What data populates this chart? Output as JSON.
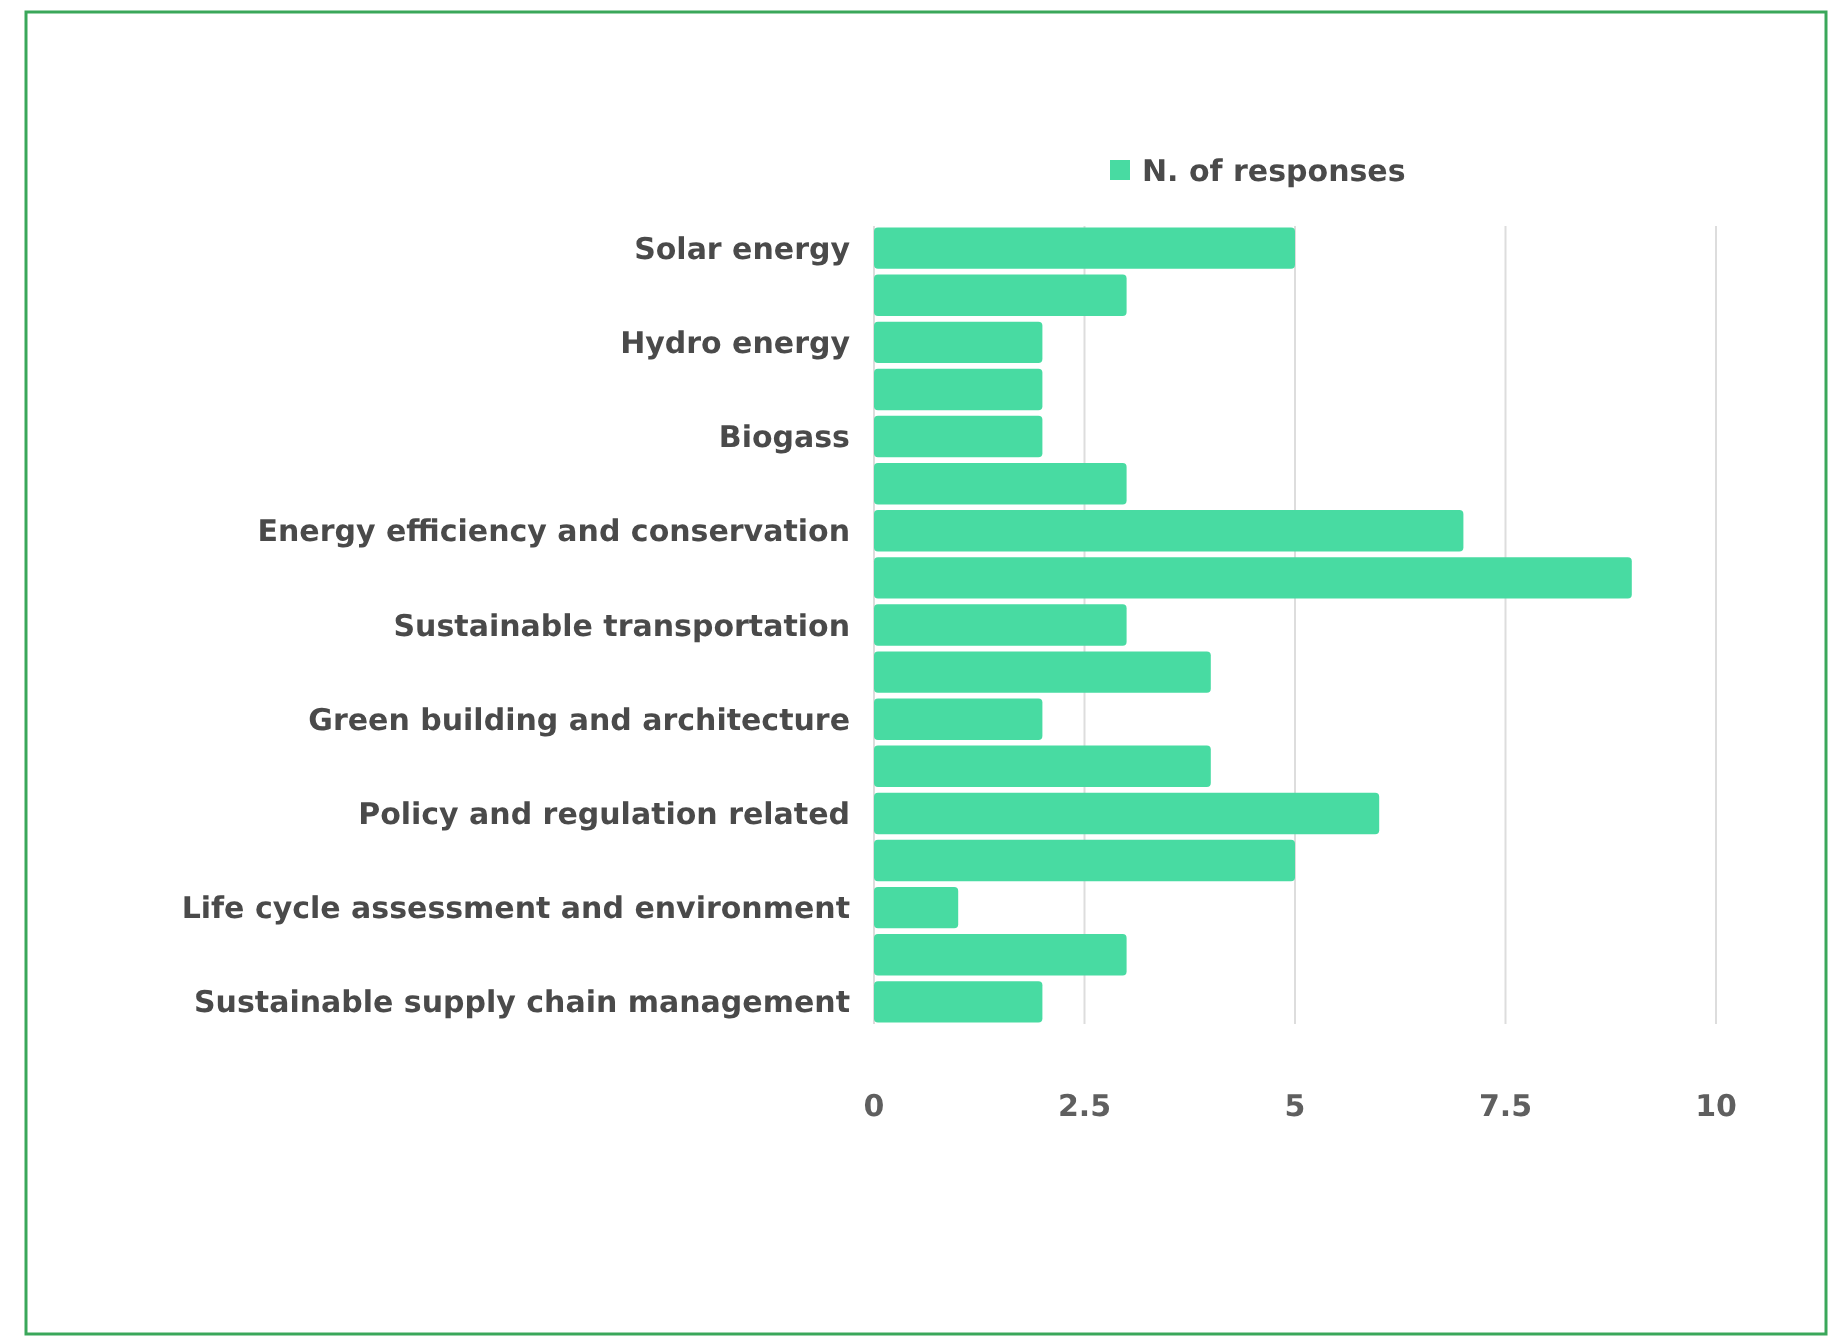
{
  "chart_data": {
    "type": "bar",
    "orientation": "horizontal",
    "categories": [
      "Solar energy",
      null,
      "Hydro energy",
      null,
      "Biogass",
      null,
      "Energy efficiency and conservation",
      null,
      "Sustainable transportation",
      null,
      "Green building and architecture",
      null,
      "Policy and regulation related",
      null,
      "Life cycle assessment and environment",
      null,
      "Sustainable supply chain management"
    ],
    "series": [
      {
        "name": "N. of responses",
        "color": "#48dba2",
        "values": [
          5,
          3,
          2,
          2,
          2,
          3,
          7,
          9,
          3,
          4,
          2,
          4,
          6,
          5,
          1,
          3,
          2
        ]
      }
    ],
    "xlim": [
      0,
      10
    ],
    "xticks": [
      0,
      2.5,
      5,
      7.5,
      10
    ],
    "grid": "x",
    "legend": "top"
  }
}
